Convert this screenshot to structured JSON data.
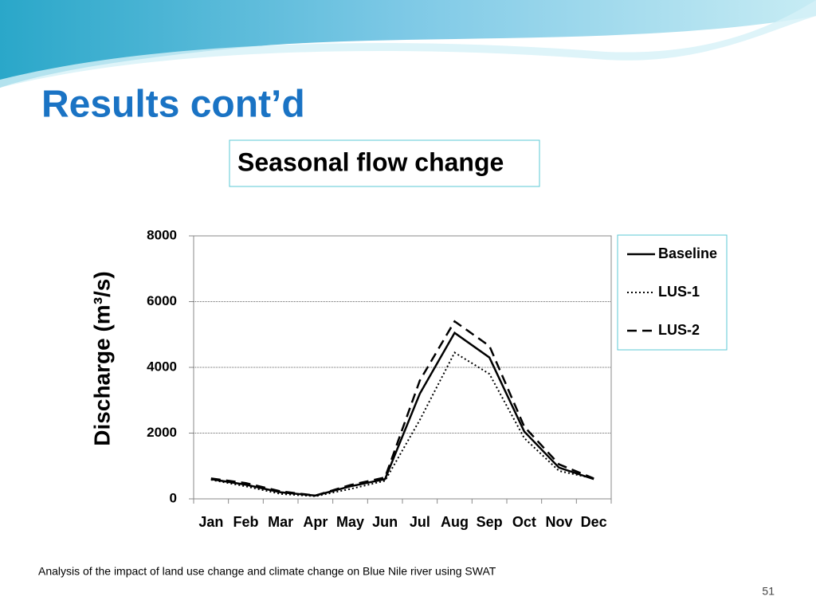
{
  "title": "Results cont’d",
  "subtitle": "Seasonal  flow change",
  "footer": "Analysis of the impact of land use change and climate change on Blue Nile river using SWAT",
  "page_number": "51",
  "chart_data": {
    "type": "line",
    "y_label": "Discharge (m³/s)",
    "categories": [
      "Jan",
      "Feb",
      "Mar",
      "Apr",
      "May",
      "Jun",
      "Jul",
      "Aug",
      "Sep",
      "Oct",
      "Nov",
      "Dec"
    ],
    "series": [
      {
        "name": "Baseline",
        "color": "#000000",
        "linestyle": "solid",
        "values": [
          600,
          430,
          200,
          100,
          380,
          600,
          3200,
          5050,
          4300,
          2050,
          950,
          600
        ]
      },
      {
        "name": "LUS-1",
        "color": "#000000",
        "linestyle": "dotted",
        "values": [
          580,
          380,
          150,
          80,
          300,
          550,
          2400,
          4450,
          3800,
          1850,
          850,
          620
        ]
      },
      {
        "name": "LUS-2",
        "color": "#000000",
        "linestyle": "dashed",
        "values": [
          620,
          480,
          230,
          100,
          420,
          650,
          3600,
          5400,
          4650,
          2200,
          1050,
          620
        ]
      }
    ],
    "ylim": [
      0,
      8000
    ],
    "yticks": [
      0,
      2000,
      4000,
      6000,
      8000
    ],
    "grid": true,
    "legend": "right"
  }
}
